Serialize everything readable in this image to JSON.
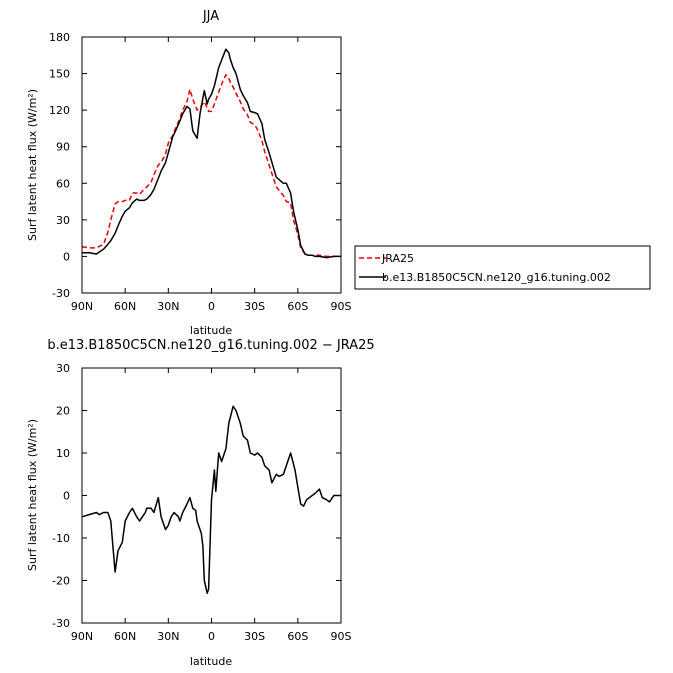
{
  "chart_data": [
    {
      "type": "line",
      "title": "JJA",
      "xlabel": "latitude",
      "ylabel": "Surf latent heat flux (W/m²)",
      "xlim": [
        90,
        -90
      ],
      "ylim": [
        -30,
        180
      ],
      "xticks": [
        90,
        60,
        30,
        0,
        -30,
        -60,
        -90
      ],
      "xticklabels": [
        "90N",
        "60N",
        "30N",
        "0",
        "30S",
        "60S",
        "90S"
      ],
      "yticks": [
        -30,
        0,
        30,
        60,
        90,
        120,
        150,
        180
      ],
      "yticklabels": [
        "-30",
        "0",
        "30",
        "60",
        "90",
        "120",
        "150",
        "180"
      ],
      "legend_position": "right, outside plot",
      "series": [
        {
          "name": "JRA25",
          "color": "#e60000",
          "dash": "dashed",
          "x": [
            90,
            85,
            80,
            75,
            72,
            70,
            67,
            65,
            62,
            60,
            57,
            55,
            52,
            50,
            47,
            45,
            42,
            40,
            37,
            35,
            32,
            30,
            27,
            25,
            22,
            20,
            17,
            15,
            13,
            10,
            8,
            5,
            3,
            2,
            0,
            -2,
            -5,
            -8,
            -10,
            -12,
            -13,
            -15,
            -17,
            -20,
            -22,
            -25,
            -27,
            -30,
            -32,
            -35,
            -37,
            -40,
            -45,
            -50,
            -52,
            -55,
            -57,
            -60,
            -62,
            -65,
            -67,
            -70,
            -72,
            -75,
            -80,
            -85,
            -88,
            -90
          ],
          "y": [
            8,
            7,
            7,
            10,
            20,
            30,
            43,
            45,
            45,
            46,
            46,
            52,
            52,
            51,
            55,
            57,
            61,
            67,
            75,
            77,
            84,
            93,
            99,
            105,
            113,
            120,
            127,
            137,
            129,
            120,
            122,
            127,
            122,
            119,
            119,
            125,
            135,
            144,
            149,
            146,
            143,
            139,
            134,
            127,
            121,
            116,
            110,
            108,
            104,
            95,
            86,
            75,
            57,
            50,
            45,
            44,
            30,
            18,
            7,
            2,
            1,
            1,
            1,
            1,
            0,
            0,
            0,
            0
          ]
        },
        {
          "name": "b.e13.B1850C5CN.ne120_g16.tuning.002",
          "color": "#000000",
          "dash": "solid",
          "x": [
            90,
            85,
            80,
            75,
            72,
            70,
            67,
            65,
            62,
            60,
            57,
            55,
            52,
            50,
            47,
            45,
            42,
            40,
            37,
            35,
            32,
            30,
            27,
            25,
            22,
            20,
            17,
            15,
            13,
            10,
            8,
            5,
            3,
            2,
            0,
            -2,
            -5,
            -8,
            -10,
            -12,
            -13,
            -15,
            -17,
            -20,
            -22,
            -25,
            -27,
            -30,
            -32,
            -35,
            -37,
            -40,
            -45,
            -50,
            -52,
            -55,
            -57,
            -60,
            -62,
            -65,
            -67,
            -70,
            -72,
            -75,
            -80,
            -85,
            -88,
            -90
          ],
          "y": [
            3,
            3,
            2,
            6,
            10,
            13,
            19,
            25,
            33,
            37,
            40,
            44,
            47,
            46,
            46,
            47,
            51,
            55,
            64,
            70,
            77,
            85,
            98,
            103,
            111,
            117,
            123,
            121,
            103,
            97,
            117,
            136,
            125,
            129,
            133,
            140,
            155,
            164,
            170,
            167,
            162,
            155,
            150,
            137,
            132,
            126,
            119,
            118,
            117,
            109,
            96,
            85,
            65,
            60,
            60,
            52,
            37,
            22,
            9,
            2,
            1,
            1,
            0,
            0,
            -1,
            0,
            0,
            0
          ]
        }
      ]
    },
    {
      "type": "line",
      "title": "b.e13.B1850C5CN.ne120_g16.tuning.002 − JRA25",
      "xlabel": "latitude",
      "ylabel": "Surf latent heat flux (W/m²)",
      "xlim": [
        90,
        -90
      ],
      "ylim": [
        -30,
        30
      ],
      "xticks": [
        90,
        60,
        30,
        0,
        -30,
        -60,
        -90
      ],
      "xticklabels": [
        "90N",
        "60N",
        "30N",
        "0",
        "30S",
        "60S",
        "90S"
      ],
      "yticks": [
        -30,
        -20,
        -10,
        0,
        10,
        20,
        30
      ],
      "yticklabels": [
        "-30",
        "-20",
        "-10",
        "0",
        "10",
        "20",
        "30"
      ],
      "series": [
        {
          "color": "#000000",
          "dash": "solid",
          "x": [
            90,
            85,
            80,
            78,
            75,
            72,
            70,
            69,
            67,
            65,
            62,
            60,
            57,
            55,
            52,
            50,
            48,
            46,
            45,
            42,
            40,
            37,
            35,
            32,
            30,
            28,
            26,
            23,
            22,
            20,
            17,
            15,
            13,
            11,
            10,
            8,
            7,
            6,
            5,
            3,
            2,
            0,
            -2,
            -3,
            -5,
            -7,
            -10,
            -12,
            -15,
            -17,
            -20,
            -22,
            -25,
            -27,
            -30,
            -32,
            -35,
            -37,
            -40,
            -42,
            -45,
            -47,
            -50,
            -52,
            -55,
            -58,
            -60,
            -62,
            -64,
            -66,
            -70,
            -72,
            -75,
            -77,
            -80,
            -82,
            -85,
            -88,
            -90
          ],
          "y": [
            -5,
            -4.5,
            -4,
            -4.5,
            -4,
            -4,
            -6,
            -10,
            -18,
            -13,
            -11,
            -6,
            -4,
            -3,
            -5,
            -6,
            -5,
            -4,
            -3,
            -3,
            -4,
            -0.5,
            -5,
            -8,
            -7,
            -5,
            -4,
            -5,
            -6,
            -4,
            -2,
            -0.5,
            -3,
            -3.5,
            -6,
            -8,
            -9,
            -12,
            -20,
            -23,
            -22,
            -1,
            6,
            1,
            10,
            8,
            11,
            17,
            21,
            20,
            17,
            14,
            13,
            10,
            9.5,
            10,
            9,
            7,
            6,
            3,
            5,
            4.5,
            5,
            7,
            10,
            6,
            2,
            -2,
            -2.5,
            -1,
            0,
            0.5,
            1.5,
            -0.5,
            -1,
            -1.5,
            0,
            0,
            0
          ]
        }
      ]
    }
  ]
}
